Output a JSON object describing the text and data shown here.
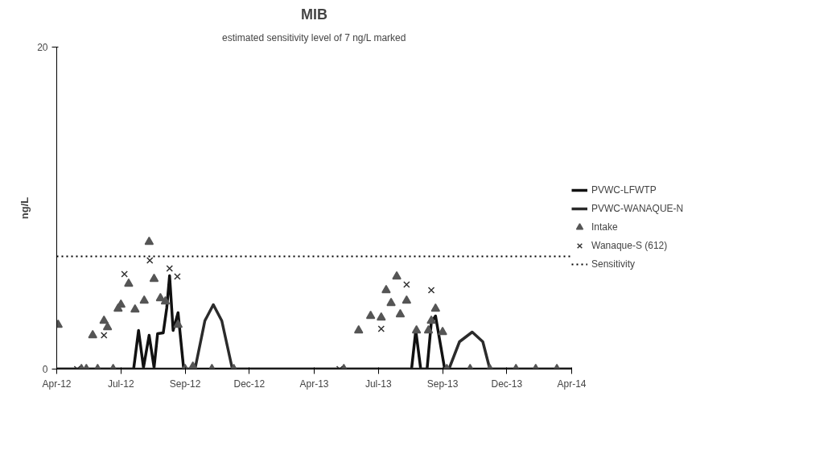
{
  "chart_data": {
    "type": "scatter",
    "title": "MIB",
    "subtitle": "estimated sensitivity level of 7 ng/L marked",
    "ylabel": "ng/L",
    "xlim": [
      "2012-04-01",
      "2014-04-01"
    ],
    "ylim": [
      0,
      20
    ],
    "yticks": [
      0,
      20
    ],
    "xticks": [
      {
        "value": "2012-04-01",
        "label": "Apr-12"
      },
      {
        "value": "2012-07-01",
        "label": "Jul-12"
      },
      {
        "value": "2012-09-30",
        "label": "Sep-12"
      },
      {
        "value": "2012-12-30",
        "label": "Dec-12"
      },
      {
        "value": "2013-04-01",
        "label": "Apr-13"
      },
      {
        "value": "2013-07-01",
        "label": "Jul-13"
      },
      {
        "value": "2013-09-30",
        "label": "Sep-13"
      },
      {
        "value": "2013-12-30",
        "label": "Dec-13"
      },
      {
        "value": "2014-04-01",
        "label": "Apr-14"
      }
    ],
    "grid": false,
    "legend": "right",
    "series": [
      {
        "name": "PVWC-LFWTP",
        "type": "line",
        "color": "#111111",
        "line_style": "solid",
        "x": [
          "2012-04-01",
          "2012-07-19",
          "2012-07-26",
          "2012-08-02",
          "2012-08-10",
          "2012-08-17",
          "2012-08-22",
          "2012-08-30",
          "2012-09-04",
          "2012-09-08",
          "2012-09-13",
          "2012-09-20",
          "2012-09-28",
          "2013-08-17",
          "2013-08-23",
          "2013-08-30",
          "2013-09-08",
          "2013-09-14",
          "2013-09-20",
          "2013-10-03",
          "2014-04-01"
        ],
        "values": [
          0,
          0,
          2.4,
          0.1,
          2.1,
          0.1,
          2.2,
          2.25,
          3.8,
          5.8,
          2.4,
          3.5,
          0,
          0,
          2.4,
          0,
          0,
          2.9,
          3.3,
          0,
          0
        ]
      },
      {
        "name": "PVWC-WANAQUE-N",
        "type": "line",
        "color": "#2b2b2b",
        "line_style": "solid",
        "x": [
          "2012-04-01",
          "2012-10-14",
          "2012-10-28",
          "2012-11-09",
          "2012-11-21",
          "2012-12-06",
          "2013-10-09",
          "2013-10-24",
          "2013-11-11",
          "2013-11-26",
          "2013-12-06",
          "2014-04-01"
        ],
        "values": [
          0,
          0,
          3.0,
          4.0,
          3.0,
          0,
          0,
          1.7,
          2.3,
          1.7,
          0,
          0
        ]
      },
      {
        "name": "Intake",
        "marker": "triangle",
        "color": "#555555",
        "x": [
          "2012-04-03",
          "2012-05-06",
          "2012-05-13",
          "2012-05-22",
          "2012-05-29",
          "2012-06-07",
          "2012-06-12",
          "2012-06-20",
          "2012-06-27",
          "2012-07-01",
          "2012-07-12",
          "2012-07-21",
          "2012-08-03",
          "2012-08-10",
          "2012-08-17",
          "2012-08-26",
          "2012-09-02",
          "2012-09-20",
          "2012-09-30",
          "2012-10-11",
          "2012-11-07",
          "2012-12-08",
          "2013-05-13",
          "2013-06-03",
          "2013-06-20",
          "2013-07-05",
          "2013-07-12",
          "2013-07-19",
          "2013-07-27",
          "2013-08-01",
          "2013-08-10",
          "2013-08-24",
          "2013-09-10",
          "2013-09-14",
          "2013-09-20",
          "2013-09-30",
          "2013-10-06",
          "2013-11-08",
          "2013-12-06",
          "2014-01-12",
          "2014-02-09",
          "2014-03-11"
        ],
        "values": [
          2.75,
          0,
          0,
          2.1,
          0,
          3.0,
          2.6,
          0,
          3.75,
          4.0,
          5.3,
          3.7,
          4.25,
          7.9,
          5.6,
          4.4,
          4.2,
          2.75,
          0,
          0.15,
          0,
          0,
          0,
          2.4,
          3.3,
          3.2,
          4.9,
          4.1,
          5.75,
          3.4,
          4.25,
          2.4,
          2.4,
          3.0,
          3.75,
          2.3,
          0,
          0,
          0,
          0,
          0,
          0
        ]
      },
      {
        "name": "Wanaque-S (612)",
        "marker": "cross",
        "color": "#333333",
        "x": [
          "2012-04-30",
          "2012-06-07",
          "2012-07-06",
          "2012-08-11",
          "2012-09-08",
          "2012-09-19",
          "2013-05-07",
          "2013-07-05",
          "2013-08-10",
          "2013-09-14"
        ],
        "values": [
          0,
          2.1,
          5.9,
          6.75,
          6.25,
          5.75,
          0,
          2.5,
          5.25,
          4.9
        ]
      }
    ],
    "ref_lines": [
      {
        "axis": "y",
        "value": 7,
        "label": "Sensitivity",
        "color": "#000000",
        "line_style": "dotted"
      }
    ]
  }
}
